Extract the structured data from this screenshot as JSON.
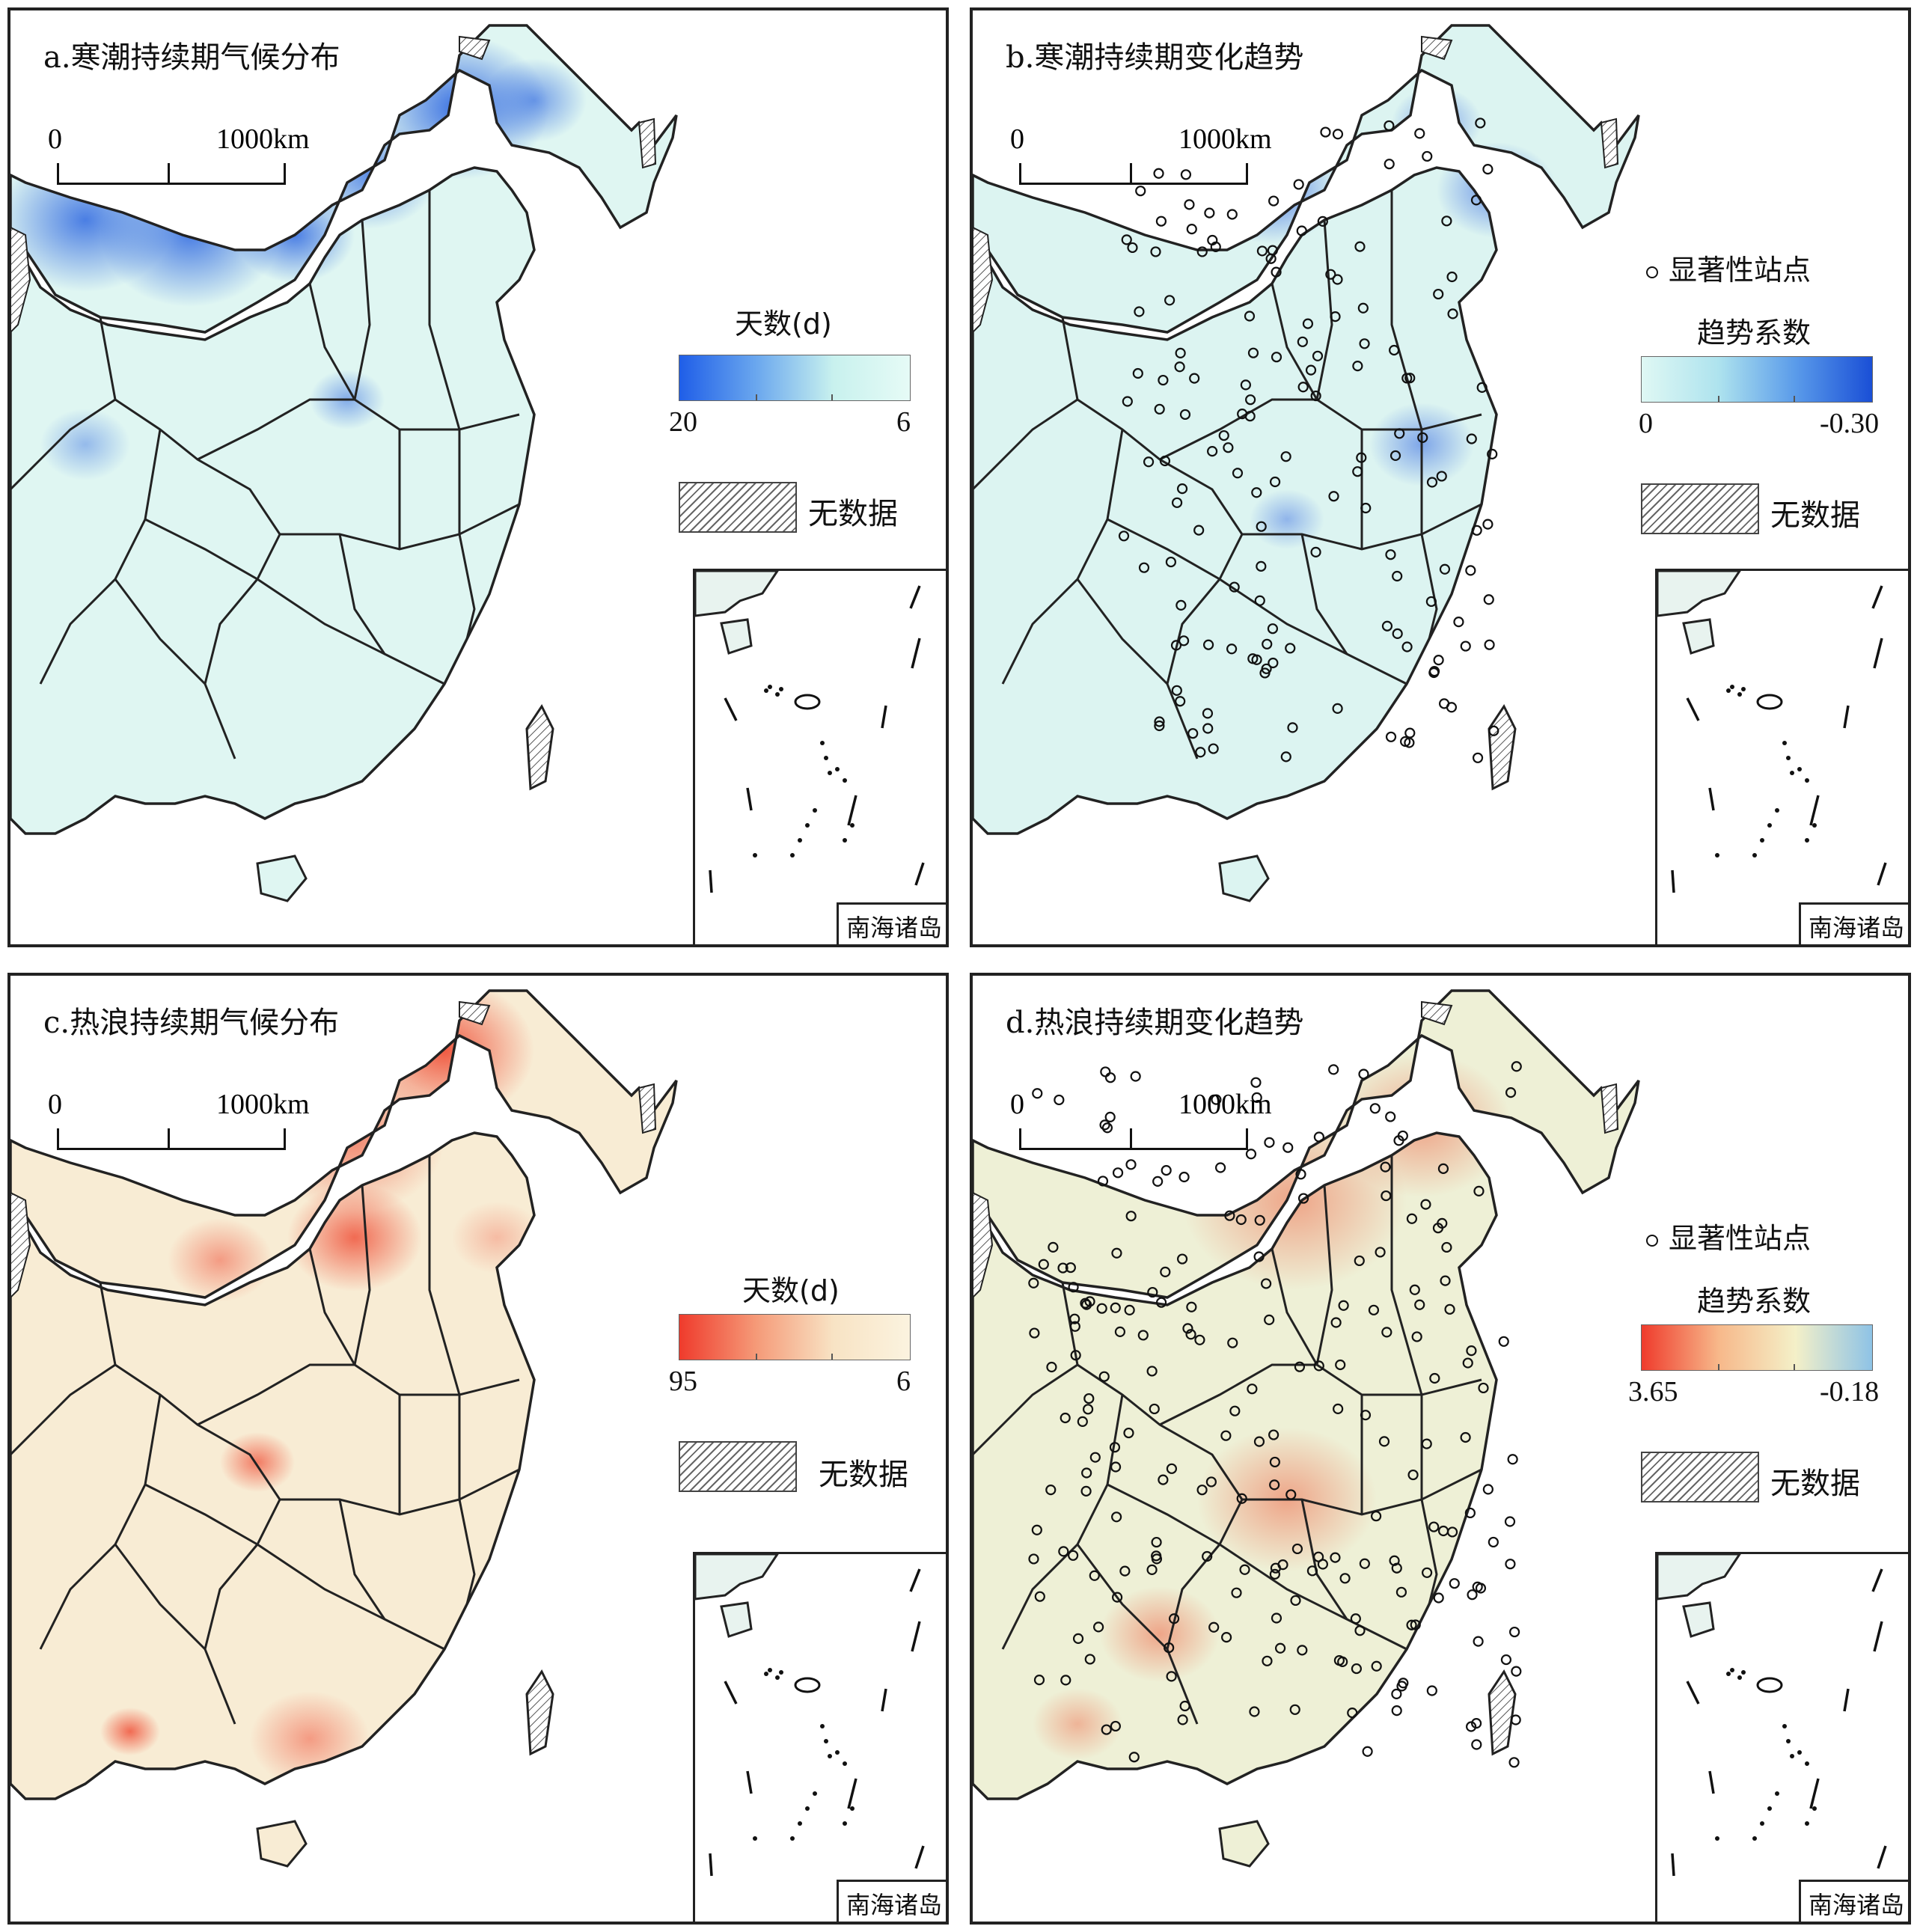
{
  "panels": [
    {
      "title": "a.寒潮持续期气候分布",
      "scale": {
        "zero": "0",
        "distance": "1000km"
      },
      "legend": {
        "title": "天数(d)",
        "min": "20",
        "max": "6",
        "colors": [
          "#1f5ee8",
          "#6aa7ee",
          "#c8f1ee",
          "#e6fbf6"
        ]
      },
      "significant_label": "",
      "nodata_label": "无数据",
      "inset_label": "南海诸岛",
      "palette": {
        "base": "#dff6f2",
        "hot": "#2560e0"
      }
    },
    {
      "title": "b.寒潮持续期变化趋势",
      "scale": {
        "zero": "0",
        "distance": "1000km"
      },
      "legend": {
        "title": "趋势系数",
        "min": "0",
        "max": "-0.30",
        "colors": [
          "#dff8f4",
          "#aee3ee",
          "#5a9bea",
          "#1a4fd6"
        ]
      },
      "significant_label": "显著性站点",
      "nodata_label": "无数据",
      "inset_label": "南海诸岛",
      "palette": {
        "base": "#dcf4f1",
        "hot": "#1f56e0"
      }
    },
    {
      "title": "c.热浪持续期气候分布",
      "scale": {
        "zero": "0",
        "distance": "1000km"
      },
      "legend": {
        "title": "天数(d)",
        "min": "95",
        "max": "6",
        "colors": [
          "#ef3b2c",
          "#f59a78",
          "#f8e3c4",
          "#fbf3df"
        ]
      },
      "significant_label": "",
      "nodata_label": "无数据",
      "inset_label": "南海诸岛",
      "palette": {
        "base": "#f8ecd4",
        "hot": "#ef4a32"
      }
    },
    {
      "title": "d.热浪持续期变化趋势",
      "scale": {
        "zero": "0",
        "distance": "1000km"
      },
      "legend": {
        "title": "趋势系数",
        "min": "3.65",
        "max": "-0.18",
        "colors": [
          "#ef3b2c",
          "#f7b88a",
          "#f4f0c8",
          "#8ec3e6"
        ]
      },
      "significant_label": "显著性站点",
      "nodata_label": "无数据",
      "inset_label": "南海诸岛",
      "palette": {
        "base": "#eef0d6",
        "hot": "#ef5a3a"
      }
    }
  ]
}
